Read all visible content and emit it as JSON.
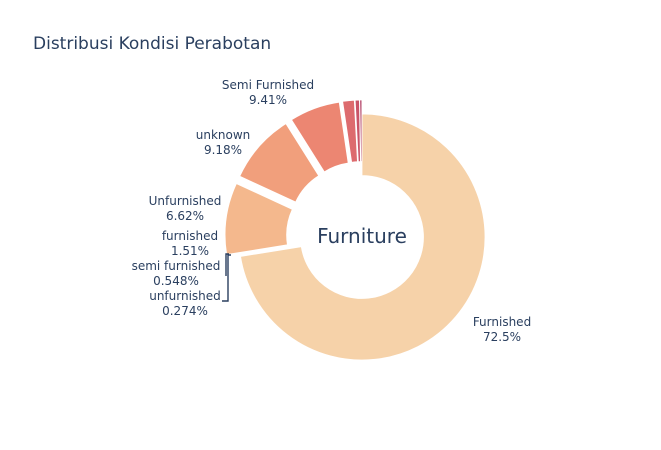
{
  "chart_data": {
    "type": "pie",
    "title": "Distribusi Kondisi Perabotan",
    "center_text": "Furniture",
    "hole": 0.5,
    "slices": [
      {
        "label": "Furnished",
        "value": 72.5,
        "pct_text": "72.5%",
        "color": "#f6d2a9"
      },
      {
        "label": "Semi Furnished",
        "value": 9.41,
        "pct_text": "9.41%",
        "color": "#f4b88d"
      },
      {
        "label": "unknown",
        "value": 9.18,
        "pct_text": "9.18%",
        "color": "#f19f7c"
      },
      {
        "label": "Unfurnished",
        "value": 6.62,
        "pct_text": "6.62%",
        "color": "#ec8672"
      },
      {
        "label": "furnished",
        "value": 1.51,
        "pct_text": "1.51%",
        "color": "#dd6b6e"
      },
      {
        "label": "semi furnished",
        "value": 0.548,
        "pct_text": "0.548%",
        "color": "#c95468"
      },
      {
        "label": "unfurnished",
        "value": 0.274,
        "pct_text": "0.274%",
        "color": "#b13f64"
      }
    ]
  }
}
